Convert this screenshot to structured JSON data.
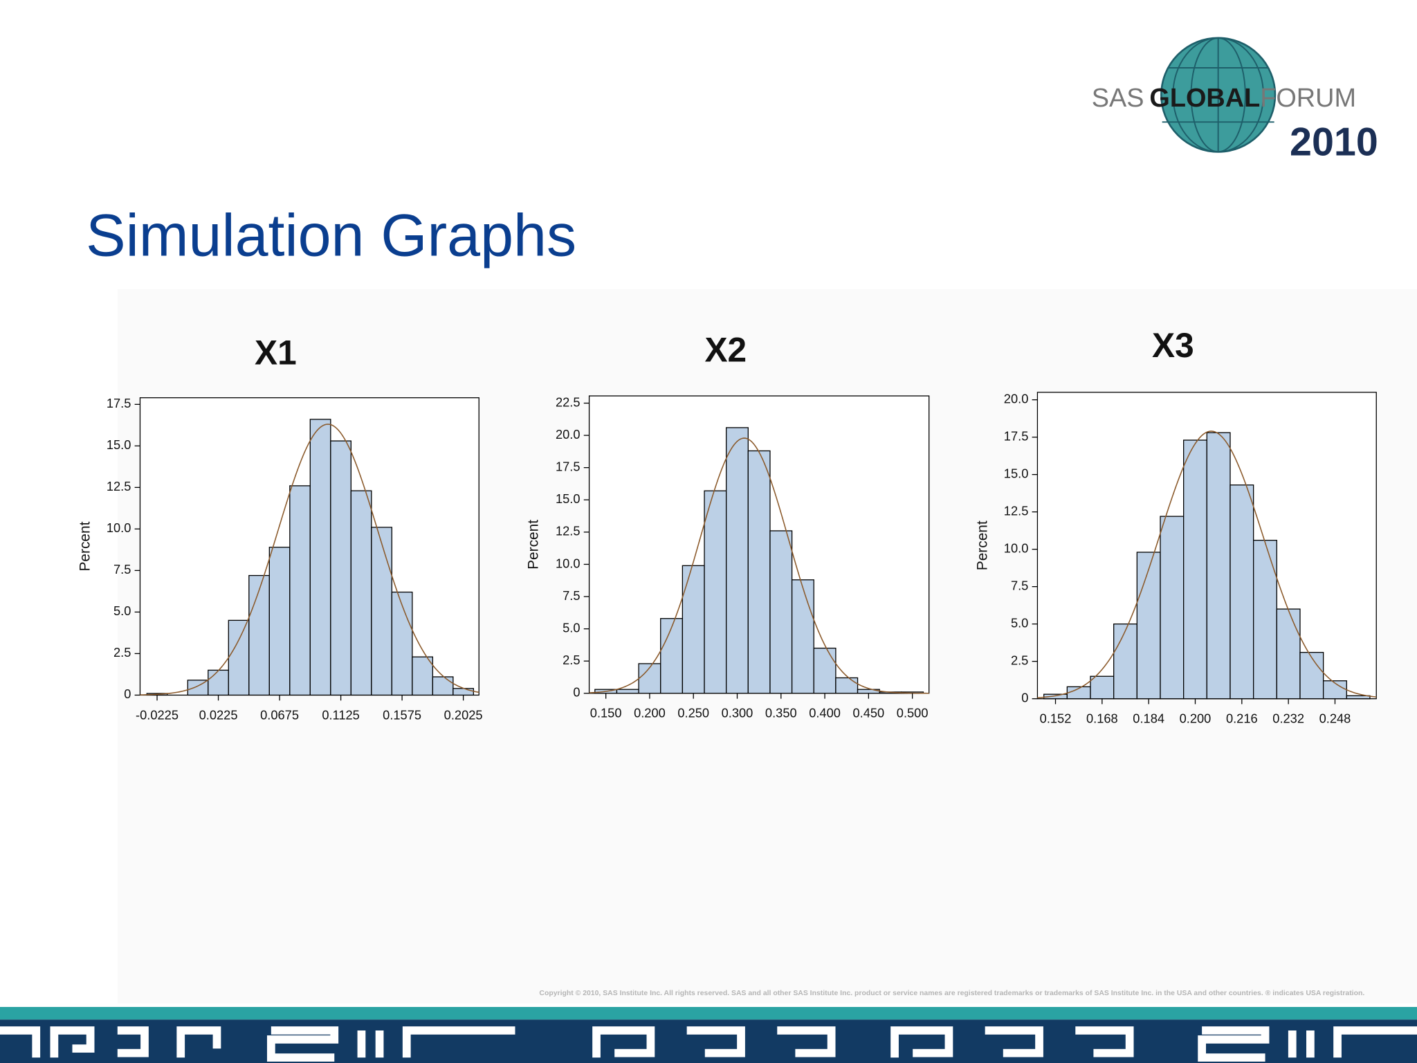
{
  "slide": {
    "title": "Simulation Graphs"
  },
  "logo": {
    "sas": "SAS",
    "global": "GLOBAL",
    "forum": "FORUM",
    "year": "2010"
  },
  "copyright": "Copyright © 2010, SAS Institute Inc. All rights reserved. SAS and all other SAS Institute Inc. product or service names are registered trademarks or trademarks of SAS Institute Inc. in the USA and other countries. ® indicates USA registration.",
  "chart_data": [
    {
      "type": "histogram",
      "title": "X1",
      "y_label": "Percent",
      "color": "#bcd0e6",
      "edge_color": "#000000",
      "bins": [
        -0.03,
        -0.015,
        0,
        0.015,
        0.03,
        0.045,
        0.06,
        0.075,
        0.09,
        0.105,
        0.12,
        0.135,
        0.15,
        0.165,
        0.18,
        0.195,
        0.21
      ],
      "counts": [
        0.1,
        0,
        0.9,
        1.5,
        4.5,
        7.2,
        8.9,
        12.6,
        16.6,
        15.3,
        12.3,
        10.1,
        6.2,
        2.3,
        1.1,
        0.4
      ],
      "xlim": [
        -0.035,
        0.214
      ],
      "ylim": [
        0,
        17.9
      ],
      "xticks": [
        -0.0225,
        0.0225,
        0.0675,
        0.1125,
        0.1575,
        0.2025
      ],
      "yticks": [
        0,
        2.5,
        {
          "value": 5,
          "label": "5.0"
        },
        7.5,
        {
          "value": 10,
          "label": "10.0"
        },
        12.5,
        {
          "value": 15,
          "label": "15.0"
        },
        17.5
      ],
      "fit_curve": {
        "color": "#8b5a2b",
        "mean": 0.103,
        "sd": 0.0367
      }
    },
    {
      "type": "histogram",
      "title": "X2",
      "y_label": "Percent",
      "color": "#bcd0e6",
      "edge_color": "#000000",
      "bins": [
        0.1375,
        0.1625,
        0.1875,
        0.2125,
        0.2375,
        0.2625,
        0.2875,
        0.3125,
        0.3375,
        0.3625,
        0.3875,
        0.4125,
        0.4375,
        0.4625,
        0.4875,
        0.5125
      ],
      "counts": [
        0.3,
        0.3,
        2.3,
        5.8,
        9.9,
        15.7,
        20.6,
        18.8,
        12.6,
        8.8,
        3.5,
        1.2,
        0.3,
        0.1,
        0.1
      ],
      "xlim": [
        0.131,
        0.519
      ],
      "ylim": [
        0,
        23.06
      ],
      "xticks": [
        {
          "value": 0.15,
          "label": "0.150"
        },
        {
          "value": 0.2,
          "label": "0.200"
        },
        {
          "value": 0.25,
          "label": "0.250"
        },
        {
          "value": 0.3,
          "label": "0.300"
        },
        {
          "value": 0.35,
          "label": "0.350"
        },
        {
          "value": 0.4,
          "label": "0.400"
        },
        {
          "value": 0.45,
          "label": "0.450"
        },
        {
          "value": 0.5,
          "label": "0.500"
        }
      ],
      "yticks": [
        0,
        2.5,
        {
          "value": 5,
          "label": "5.0"
        },
        7.5,
        {
          "value": 10,
          "label": "10.0"
        },
        12.5,
        {
          "value": 15,
          "label": "15.0"
        },
        17.5,
        {
          "value": 20,
          "label": "20.0"
        },
        22.5
      ],
      "fit_curve": {
        "color": "#8b5a2b",
        "mean": 0.308,
        "sd": 0.0504
      }
    },
    {
      "type": "histogram",
      "title": "X3",
      "y_label": "Percent",
      "color": "#bcd0e6",
      "edge_color": "#000000",
      "bins": [
        0.148,
        0.156,
        0.164,
        0.172,
        0.18,
        0.188,
        0.196,
        0.204,
        0.212,
        0.22,
        0.228,
        0.236,
        0.244,
        0.252,
        0.26
      ],
      "counts": [
        0.3,
        0.8,
        1.5,
        5.0,
        9.8,
        12.2,
        17.3,
        17.8,
        14.3,
        10.6,
        6.0,
        3.1,
        1.2,
        0.2
      ],
      "xlim": [
        0.1458,
        0.2622
      ],
      "ylim": [
        0,
        20.5
      ],
      "xticks": [
        0.152,
        0.168,
        0.184,
        {
          "value": 0.2,
          "label": "0.200"
        },
        0.216,
        0.232,
        0.248
      ],
      "yticks": [
        0,
        2.5,
        {
          "value": 5,
          "label": "5.0"
        },
        7.5,
        {
          "value": 10,
          "label": "10.0"
        },
        12.5,
        {
          "value": 15,
          "label": "15.0"
        },
        17.5,
        {
          "value": 20,
          "label": "20.0"
        }
      ],
      "fit_curve": {
        "color": "#8b5a2b",
        "mean": 0.2055,
        "sd": 0.01783
      }
    }
  ]
}
